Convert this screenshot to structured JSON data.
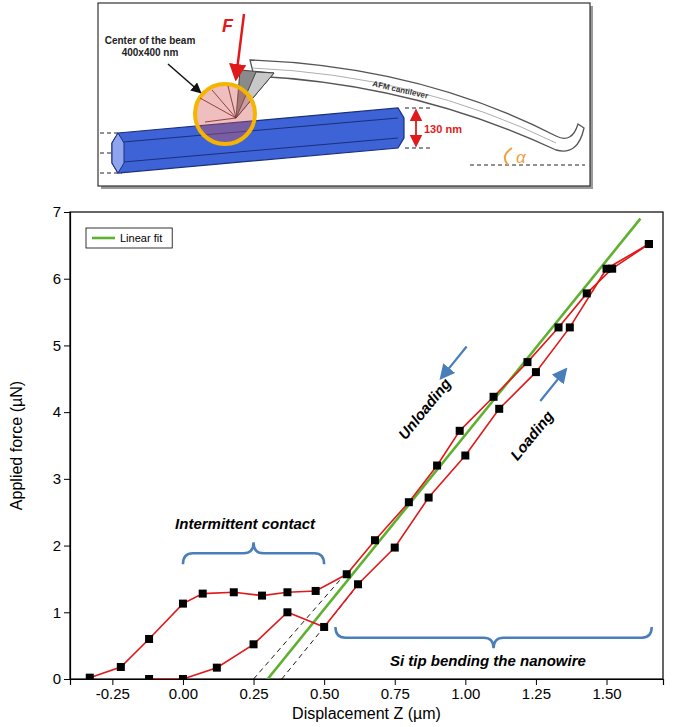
{
  "chart_data": {
    "type": "line",
    "x_label": "Displacement Z (µm)",
    "y_label": "Applied force (µN)",
    "xlim": [
      -0.4,
      1.7
    ],
    "ylim": [
      0,
      7
    ],
    "xticks": [
      -0.25,
      {
        "value": 0,
        "label": "0.00"
      },
      0.25,
      {
        "value": 0.5,
        "label": "0.50"
      },
      0.75,
      {
        "value": 1,
        "label": "1.00"
      },
      1.25,
      {
        "value": 1.5,
        "label": "1.50"
      }
    ],
    "yticks": [
      0,
      1,
      2,
      3,
      4,
      5,
      6,
      7
    ],
    "grid": false,
    "legend": "upper left",
    "series": [
      {
        "name": "Loading",
        "color": "#e0191b",
        "marker": "square",
        "line_style": "solid",
        "x": [
          -0.12,
          0.0,
          0.12,
          0.25,
          0.37,
          0.5,
          0.62,
          0.75,
          0.87,
          1.0,
          1.12,
          1.25,
          1.37,
          1.5,
          1.65
        ],
        "values": [
          0.0,
          0.0,
          0.17,
          0.52,
          1.0,
          0.78,
          1.42,
          1.97,
          2.72,
          3.35,
          4.05,
          4.6,
          5.27,
          6.15,
          6.52
        ]
      },
      {
        "name": "Unloading",
        "color": "#e0191b",
        "marker": "square",
        "line_style": "solid",
        "x": [
          1.65,
          1.52,
          1.43,
          1.33,
          1.22,
          1.1,
          0.98,
          0.9,
          0.8,
          0.68,
          0.58,
          0.47,
          0.37,
          0.28,
          0.18,
          0.07,
          0.0,
          -0.12,
          -0.22,
          -0.33
        ],
        "values": [
          6.52,
          6.15,
          5.78,
          5.27,
          4.75,
          4.23,
          3.72,
          3.2,
          2.65,
          2.08,
          1.57,
          1.32,
          1.3,
          1.25,
          1.3,
          1.28,
          1.13,
          0.6,
          0.18,
          0.02
        ]
      }
    ],
    "fit": {
      "name": "Linear fit",
      "color": "#5db12f",
      "line_style": "solid",
      "x": [
        0.3,
        1.62
      ],
      "values": [
        0,
        6.9
      ]
    },
    "guides": {
      "color": "#000000",
      "line_style": "dashed",
      "lines": [
        {
          "x": [
            0.25,
            0.58
          ],
          "values": [
            0,
            1.6
          ]
        },
        {
          "x": [
            0.35,
            0.6
          ],
          "values": [
            0,
            1.3
          ]
        }
      ]
    },
    "annotations": [
      {
        "text": "Intermittent contact"
      },
      {
        "text": "Si tip bending the nanowire"
      }
    ]
  },
  "diagram": {
    "force": "F",
    "beam_label": [
      "Center of the beam",
      "400x400 nm"
    ],
    "cantilever": "AFM cantilever",
    "diameter": "130 nm",
    "angle": "α"
  }
}
